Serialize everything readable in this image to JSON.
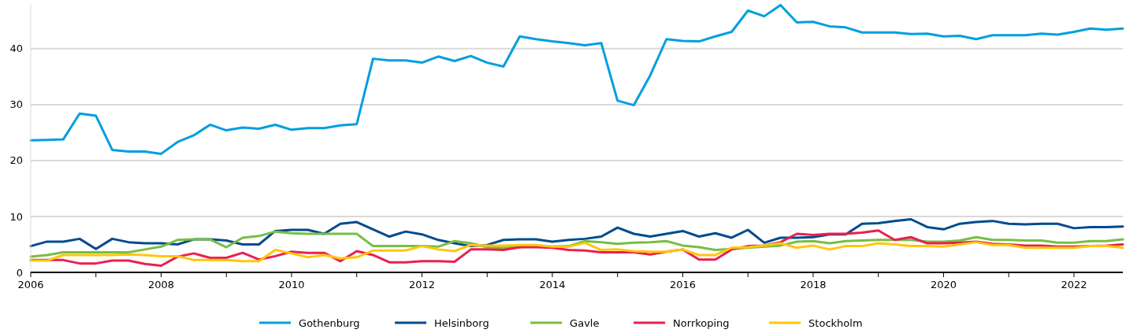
{
  "chart_data": {
    "type": "line",
    "x": [
      2006,
      2006.25,
      2006.5,
      2006.75,
      2007,
      2007.25,
      2007.5,
      2007.75,
      2008,
      2008.25,
      2008.5,
      2008.75,
      2009,
      2009.25,
      2009.5,
      2009.75,
      2010,
      2010.25,
      2010.5,
      2010.75,
      2011,
      2011.25,
      2011.5,
      2011.75,
      2012,
      2012.25,
      2012.5,
      2012.75,
      2013,
      2013.25,
      2013.5,
      2013.75,
      2014,
      2014.25,
      2014.5,
      2014.75,
      2015,
      2015.25,
      2015.5,
      2015.75,
      2016,
      2016.25,
      2016.5,
      2016.75,
      2017,
      2017.25,
      2017.5,
      2017.75,
      2018,
      2018.25,
      2018.5,
      2018.75,
      2019,
      2019.25,
      2019.5,
      2019.75,
      2020,
      2020.25,
      2020.5,
      2020.75,
      2021,
      2021.25,
      2021.5,
      2021.75,
      2022,
      2022.25,
      2022.5,
      2022.75
    ],
    "series": [
      {
        "name": "Gothenburg",
        "color": "#009fdf",
        "values": [
          23.6,
          23.7,
          23.8,
          28.4,
          28.0,
          21.9,
          21.6,
          21.6,
          21.2,
          23.3,
          24.5,
          26.4,
          25.4,
          25.9,
          25.7,
          26.4,
          25.5,
          25.8,
          25.8,
          26.3,
          26.5,
          38.2,
          37.9,
          37.9,
          37.5,
          38.6,
          37.8,
          38.7,
          37.5,
          36.8,
          42.2,
          41.7,
          41.3,
          41.0,
          40.6,
          41.0,
          30.7,
          29.9,
          35.2,
          41.7,
          41.4,
          41.3,
          42.2,
          43.0,
          46.8,
          45.8,
          47.8,
          44.7,
          44.8,
          44.0,
          43.8,
          42.9,
          42.9,
          42.9,
          42.6,
          42.7,
          42.2,
          42.3,
          41.7,
          42.4,
          42.4,
          42.4,
          42.7,
          42.5,
          43.0,
          43.6,
          43.4,
          43.6
        ]
      },
      {
        "name": "Helsinborg",
        "color": "#004b8d",
        "values": [
          4.7,
          5.5,
          5.5,
          6.0,
          4.2,
          6.0,
          5.4,
          5.2,
          5.2,
          5.0,
          5.9,
          5.9,
          5.7,
          5.0,
          5.0,
          7.4,
          7.6,
          7.6,
          6.9,
          8.7,
          9.0,
          7.7,
          6.4,
          7.3,
          6.8,
          5.8,
          5.2,
          4.7,
          4.9,
          5.8,
          5.9,
          5.9,
          5.5,
          5.8,
          6.0,
          6.4,
          8.0,
          6.9,
          6.4,
          6.9,
          7.4,
          6.4,
          7.0,
          6.2,
          7.6,
          5.3,
          6.2,
          6.2,
          6.3,
          6.8,
          6.8,
          8.7,
          8.8,
          9.2,
          9.5,
          8.1,
          7.7,
          8.7,
          9.0,
          9.2,
          8.7,
          8.6,
          8.7,
          8.7,
          7.9,
          8.1,
          8.1,
          8.2
        ]
      },
      {
        "name": "Gavle",
        "color": "#78be43",
        "values": [
          2.8,
          3.1,
          3.6,
          3.6,
          3.6,
          3.6,
          3.6,
          4.1,
          4.6,
          5.8,
          5.9,
          5.9,
          4.5,
          6.2,
          6.5,
          7.3,
          7.0,
          6.9,
          6.9,
          6.9,
          6.9,
          4.7,
          4.7,
          4.7,
          4.7,
          4.6,
          5.6,
          5.2,
          4.5,
          4.4,
          4.5,
          4.6,
          4.6,
          4.7,
          5.6,
          5.4,
          5.1,
          5.3,
          5.4,
          5.6,
          4.8,
          4.5,
          4.0,
          4.2,
          4.4,
          4.6,
          4.8,
          5.5,
          5.6,
          5.2,
          5.6,
          5.7,
          5.8,
          5.8,
          5.8,
          5.5,
          5.5,
          5.7,
          6.3,
          5.8,
          5.8,
          5.7,
          5.7,
          5.3,
          5.3,
          5.6,
          5.6,
          5.9
        ]
      },
      {
        "name": "Norrkoping",
        "color": "#e8214f",
        "values": [
          2.2,
          2.2,
          2.2,
          1.6,
          1.6,
          2.1,
          2.1,
          1.5,
          1.2,
          2.8,
          3.4,
          2.6,
          2.6,
          3.5,
          2.3,
          2.9,
          3.7,
          3.5,
          3.5,
          2.0,
          3.8,
          3.1,
          1.8,
          1.8,
          2.0,
          2.0,
          1.9,
          4.1,
          4.1,
          4.0,
          4.5,
          4.5,
          4.4,
          4.0,
          3.9,
          3.6,
          3.6,
          3.6,
          3.2,
          3.7,
          4.1,
          2.3,
          2.3,
          4.1,
          4.7,
          4.8,
          5.4,
          6.9,
          6.7,
          6.9,
          6.9,
          7.1,
          7.5,
          5.8,
          6.3,
          5.2,
          5.2,
          5.3,
          5.5,
          5.1,
          5.0,
          4.8,
          4.8,
          4.6,
          4.6,
          4.7,
          4.8,
          5.0
        ]
      },
      {
        "name": "Stockholm",
        "color": "#ffc60b",
        "values": [
          2.1,
          2.1,
          3.1,
          3.1,
          3.1,
          3.1,
          3.2,
          3.1,
          2.9,
          2.9,
          2.2,
          2.2,
          2.2,
          2.0,
          2.0,
          4.0,
          3.4,
          2.7,
          3.1,
          2.5,
          2.7,
          3.9,
          3.9,
          3.9,
          4.7,
          4.1,
          3.8,
          4.9,
          4.8,
          4.8,
          4.9,
          4.9,
          4.6,
          4.6,
          5.3,
          4.0,
          4.1,
          3.8,
          3.7,
          3.7,
          4.1,
          3.1,
          3.1,
          4.4,
          4.5,
          4.8,
          5.2,
          4.4,
          4.8,
          4.1,
          4.7,
          4.7,
          5.2,
          5.0,
          4.7,
          4.7,
          4.6,
          5.0,
          5.4,
          4.9,
          4.9,
          4.4,
          4.4,
          4.4,
          4.4,
          4.7,
          4.7,
          4.4
        ]
      }
    ],
    "xlim": [
      2006,
      2022.75
    ],
    "xticks": [
      2006,
      {
        "value": 2007,
        "label": null
      },
      2008,
      {
        "value": 2009,
        "label": null
      },
      2010,
      {
        "value": 2011,
        "label": null
      },
      2012,
      {
        "value": 2013,
        "label": null
      },
      2014,
      {
        "value": 2015,
        "label": null
      },
      2016,
      {
        "value": 2017,
        "label": null
      },
      2018,
      {
        "value": 2019,
        "label": null
      },
      2020,
      {
        "value": 2021,
        "label": null
      },
      2022
    ],
    "ylim": [
      0,
      48
    ],
    "yticks": [
      0,
      10,
      20,
      30,
      40
    ],
    "grid": "y",
    "legend": "bottom",
    "line_style": "solid",
    "marker": "none"
  }
}
